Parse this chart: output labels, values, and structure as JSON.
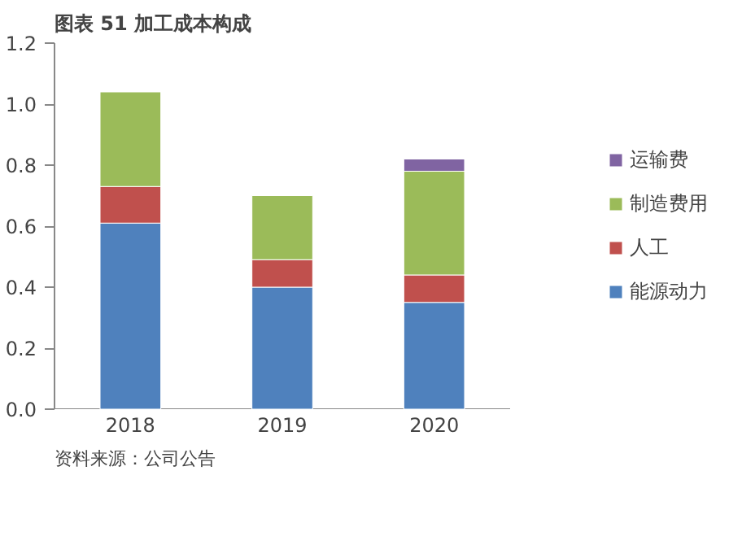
{
  "chart_data": {
    "type": "bar",
    "title": "图表 51 加工成本构成",
    "stacked": true,
    "categories": [
      "2018",
      "2019",
      "2020"
    ],
    "series": [
      {
        "name": "能源动力",
        "color": "#4f81bd",
        "values": [
          0.61,
          0.4,
          0.35
        ]
      },
      {
        "name": "人工",
        "color": "#c0504d",
        "values": [
          0.12,
          0.09,
          0.09
        ]
      },
      {
        "name": "制造费用",
        "color": "#9bbb59",
        "values": [
          0.31,
          0.21,
          0.34
        ]
      },
      {
        "name": "运输费",
        "color": "#8064a2",
        "values": [
          null,
          null,
          0.04
        ]
      }
    ],
    "ylim": [
      0,
      1.2
    ],
    "yticks": [
      {
        "value": 0,
        "label": "0.0"
      },
      {
        "value": 0.2,
        "label": "0.2"
      },
      {
        "value": 0.4,
        "label": "0.4"
      },
      {
        "value": 0.6,
        "label": "0.6"
      },
      {
        "value": 0.8,
        "label": "0.8"
      },
      {
        "value": 1.0,
        "label": "1.0"
      },
      {
        "value": 1.2,
        "label": "1.2"
      }
    ],
    "grid": false,
    "legend": "right",
    "annotations": [
      "资料来源：公司公告"
    ]
  }
}
